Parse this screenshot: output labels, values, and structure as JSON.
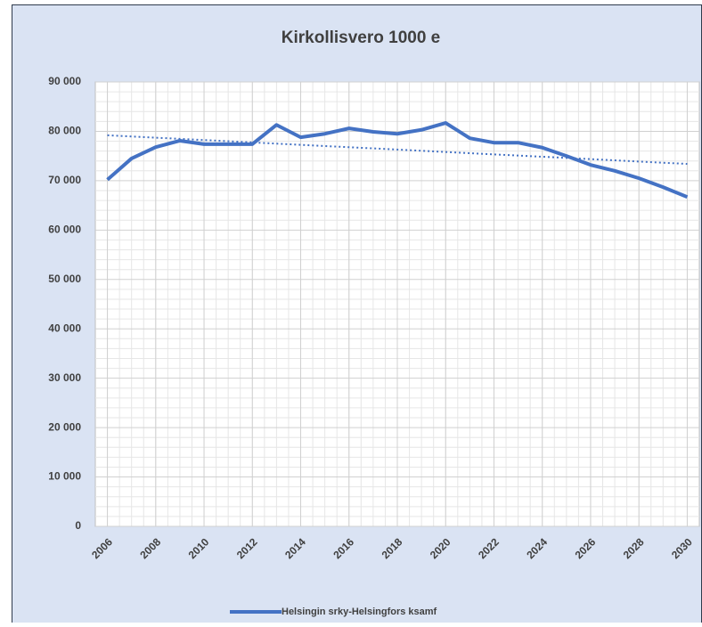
{
  "chart_data": {
    "type": "line",
    "title": "Kirkollisvero 1000 e",
    "x": [
      2006,
      2007,
      2008,
      2009,
      2010,
      2011,
      2012,
      2013,
      2014,
      2015,
      2016,
      2017,
      2018,
      2019,
      2020,
      2021,
      2022,
      2023,
      2024,
      2025,
      2026,
      2027,
      2028,
      2029,
      2030
    ],
    "series": [
      {
        "name": "Helsingin srky-Helsingfors ksamf",
        "color": "#4472c4",
        "values": [
          70200,
          74500,
          76800,
          78100,
          77400,
          77400,
          77400,
          81300,
          78800,
          79500,
          80600,
          79900,
          79500,
          80300,
          81700,
          78600,
          77700,
          77700,
          76700,
          75000,
          73200,
          72000,
          70500,
          68700,
          66700
        ]
      }
    ],
    "trendline": {
      "type": "linear",
      "color": "#4472c4",
      "style": "dotted",
      "values": [
        79200,
        73400
      ]
    },
    "xlim": [
      2005.5,
      2030.5
    ],
    "xticks": [
      2006,
      2008,
      2010,
      2012,
      2014,
      2016,
      2018,
      2020,
      2022,
      2024,
      2026,
      2028,
      2030
    ],
    "ylim": [
      0,
      90000
    ],
    "yticks": [
      0,
      {
        "value": 10000,
        "label": "10 000"
      },
      {
        "value": 20000,
        "label": "20 000"
      },
      {
        "value": 30000,
        "label": "30 000"
      },
      {
        "value": 40000,
        "label": "40 000"
      },
      {
        "value": 50000,
        "label": "50 000"
      },
      {
        "value": 60000,
        "label": "60 000"
      },
      {
        "value": 70000,
        "label": "70 000"
      },
      {
        "value": 80000,
        "label": "80 000"
      },
      {
        "value": 90000,
        "label": "90 000"
      }
    ],
    "grid": true,
    "minor_grid": true,
    "legend": "bottom"
  }
}
